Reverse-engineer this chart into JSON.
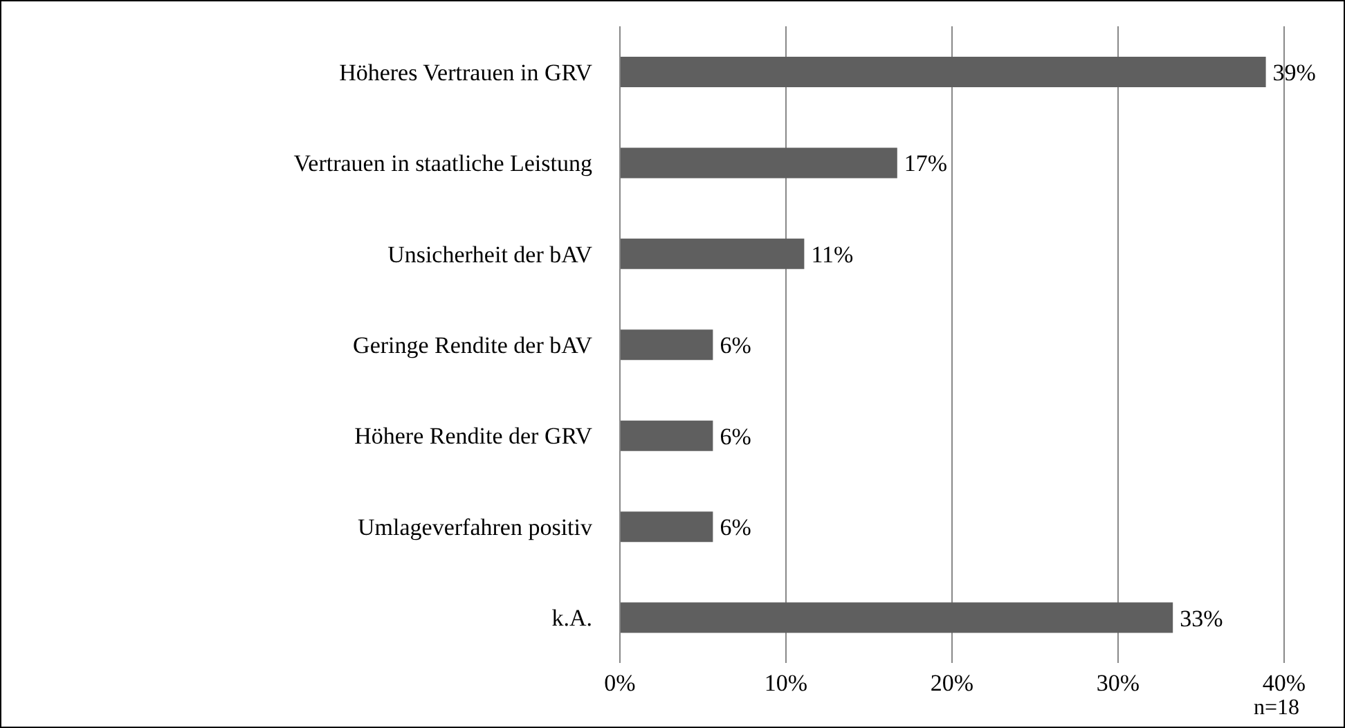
{
  "chart_data": {
    "type": "bar",
    "orientation": "horizontal",
    "categories": [
      "Höheres Vertrauen in GRV",
      "Vertrauen in staatliche Leistung",
      "Unsicherheit der bAV",
      "Geringe Rendite der bAV",
      "Höhere Rendite der GRV",
      "Umlageverfahren positiv",
      "k.A."
    ],
    "values": [
      38.9,
      16.7,
      11.1,
      5.6,
      5.6,
      5.6,
      33.3
    ],
    "value_labels": [
      "39%",
      "17%",
      "11%",
      "6%",
      "6%",
      "6%",
      "33%"
    ],
    "color": "#5f5f5f",
    "xlim": [
      0,
      40
    ],
    "xticks": [
      {
        "value": 0,
        "label": "0%"
      },
      {
        "value": 10,
        "label": "10%"
      },
      {
        "value": 20,
        "label": "20%"
      },
      {
        "value": 30,
        "label": "30%"
      },
      {
        "value": 40,
        "label": "40%"
      }
    ],
    "grid": "x",
    "legend": false,
    "annotations": [
      "n=18"
    ]
  }
}
